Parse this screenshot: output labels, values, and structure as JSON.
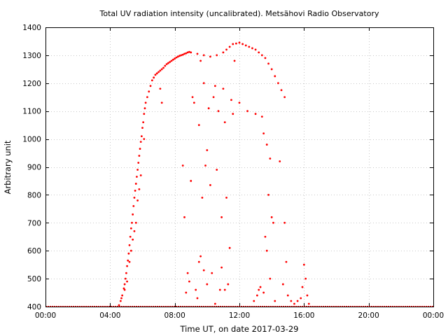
{
  "chart_data": {
    "type": "scatter",
    "title": "Total UV radiation intensity (uncalibrated). Metsähovi Radio Observatory",
    "xlabel": "Time UT, on date 2017-03-29",
    "ylabel": "Arbitrary unit",
    "xlim": [
      0,
      24
    ],
    "ylim": [
      400,
      1400
    ],
    "x_ticks": [
      0,
      4,
      8,
      12,
      16,
      20,
      24
    ],
    "x_tick_labels": [
      "00:00",
      "04:00",
      "08:00",
      "12:00",
      "16:00",
      "20:00",
      "00:00"
    ],
    "y_ticks": [
      400,
      500,
      600,
      700,
      800,
      900,
      1000,
      1100,
      1200,
      1300,
      1400
    ],
    "y_tick_labels": [
      "400",
      "500",
      "600",
      "700",
      "800",
      "900",
      "1000",
      "1100",
      "1200",
      "1300",
      "1400"
    ],
    "grid": true,
    "marker_color": "#ff0000",
    "baseline": {
      "value": 400,
      "x_range": [
        0,
        24
      ]
    },
    "series": [
      {
        "points": [
          [
            4.55,
            405
          ],
          [
            4.65,
            420
          ],
          [
            4.75,
            440
          ],
          [
            4.85,
            465
          ],
          [
            4.9,
            480
          ],
          [
            4.95,
            500
          ],
          [
            5.0,
            520
          ],
          [
            5.05,
            545
          ],
          [
            5.1,
            565
          ],
          [
            5.15,
            590
          ],
          [
            5.2,
            620
          ],
          [
            5.25,
            650
          ],
          [
            5.3,
            680
          ],
          [
            5.35,
            700
          ],
          [
            5.4,
            730
          ],
          [
            5.45,
            760
          ],
          [
            5.5,
            790
          ],
          [
            5.55,
            815
          ],
          [
            5.6,
            840
          ],
          [
            5.65,
            865
          ],
          [
            5.7,
            890
          ],
          [
            5.75,
            915
          ],
          [
            5.8,
            940
          ],
          [
            5.85,
            965
          ],
          [
            5.9,
            990
          ],
          [
            5.95,
            1010
          ],
          [
            6.0,
            1040
          ],
          [
            6.05,
            1060
          ],
          [
            6.1,
            1090
          ],
          [
            6.15,
            1110
          ],
          [
            6.2,
            1130
          ],
          [
            6.3,
            1150
          ],
          [
            6.4,
            1170
          ],
          [
            6.5,
            1190
          ],
          [
            6.6,
            1210
          ],
          [
            6.7,
            1220
          ],
          [
            6.8,
            1230
          ],
          [
            6.9,
            1235
          ],
          [
            7.0,
            1240
          ],
          [
            7.1,
            1245
          ],
          [
            7.2,
            1250
          ],
          [
            7.3,
            1255
          ],
          [
            7.4,
            1262
          ],
          [
            7.5,
            1268
          ],
          [
            7.6,
            1272
          ],
          [
            7.7,
            1276
          ],
          [
            7.8,
            1280
          ],
          [
            7.9,
            1284
          ],
          [
            8.0,
            1288
          ],
          [
            8.1,
            1292
          ],
          [
            8.2,
            1295
          ],
          [
            8.3,
            1298
          ],
          [
            8.4,
            1300
          ],
          [
            8.5,
            1302
          ],
          [
            8.6,
            1305
          ],
          [
            8.7,
            1307
          ],
          [
            8.8,
            1310
          ],
          [
            8.9,
            1312
          ],
          [
            9.0,
            1310
          ],
          [
            9.4,
            1305
          ],
          [
            9.8,
            1300
          ],
          [
            10.2,
            1295
          ],
          [
            10.6,
            1300
          ],
          [
            11.0,
            1310
          ],
          [
            11.2,
            1320
          ],
          [
            11.4,
            1330
          ],
          [
            11.6,
            1340
          ],
          [
            11.8,
            1342
          ],
          [
            12.0,
            1345
          ],
          [
            12.2,
            1340
          ],
          [
            12.4,
            1335
          ],
          [
            12.6,
            1330
          ],
          [
            12.8,
            1325
          ],
          [
            13.0,
            1320
          ],
          [
            13.2,
            1310
          ],
          [
            13.4,
            1300
          ],
          [
            13.6,
            1290
          ],
          [
            13.8,
            1270
          ],
          [
            14.0,
            1250
          ],
          [
            14.2,
            1225
          ],
          [
            14.4,
            1200
          ],
          [
            14.6,
            1175
          ],
          [
            14.8,
            1150
          ],
          [
            4.7,
            430
          ],
          [
            4.9,
            460
          ],
          [
            5.05,
            490
          ],
          [
            5.2,
            560
          ],
          [
            5.3,
            600
          ],
          [
            5.4,
            640
          ],
          [
            5.5,
            670
          ],
          [
            5.6,
            700
          ],
          [
            5.7,
            780
          ],
          [
            5.8,
            820
          ],
          [
            5.9,
            870
          ],
          [
            6.1,
            1000
          ],
          [
            7.1,
            1180
          ],
          [
            7.2,
            1130
          ],
          [
            8.5,
            905
          ],
          [
            8.6,
            720
          ],
          [
            8.7,
            450
          ],
          [
            8.8,
            520
          ],
          [
            8.9,
            490
          ],
          [
            9.0,
            850
          ],
          [
            9.1,
            1150
          ],
          [
            9.2,
            1130
          ],
          [
            9.3,
            460
          ],
          [
            9.4,
            430
          ],
          [
            9.5,
            1050
          ],
          [
            9.6,
            1280
          ],
          [
            9.7,
            790
          ],
          [
            9.8,
            1200
          ],
          [
            9.9,
            905
          ],
          [
            10.0,
            960
          ],
          [
            10.1,
            1110
          ],
          [
            10.2,
            835
          ],
          [
            10.3,
            520
          ],
          [
            10.4,
            1150
          ],
          [
            10.5,
            1190
          ],
          [
            10.6,
            890
          ],
          [
            10.7,
            1100
          ],
          [
            10.8,
            460
          ],
          [
            10.9,
            720
          ],
          [
            11.0,
            1180
          ],
          [
            11.1,
            1060
          ],
          [
            11.2,
            790
          ],
          [
            11.3,
            480
          ],
          [
            11.4,
            610
          ],
          [
            11.5,
            1140
          ],
          [
            11.6,
            1090
          ],
          [
            11.7,
            1280
          ],
          [
            12.0,
            1130
          ],
          [
            12.5,
            1100
          ],
          [
            13.0,
            1090
          ],
          [
            13.2,
            460
          ],
          [
            13.4,
            1080
          ],
          [
            13.5,
            1020
          ],
          [
            13.6,
            650
          ],
          [
            13.7,
            980
          ],
          [
            13.8,
            800
          ],
          [
            13.9,
            930
          ],
          [
            14.0,
            720
          ],
          [
            14.1,
            700
          ],
          [
            14.5,
            920
          ],
          [
            14.7,
            480
          ],
          [
            14.8,
            700
          ],
          [
            14.9,
            560
          ],
          [
            15.0,
            440
          ],
          [
            15.2,
            420
          ],
          [
            15.4,
            410
          ],
          [
            15.6,
            420
          ],
          [
            15.8,
            430
          ],
          [
            15.9,
            470
          ],
          [
            16.0,
            550
          ],
          [
            16.1,
            500
          ],
          [
            16.2,
            440
          ],
          [
            16.3,
            410
          ],
          [
            9.5,
            560
          ],
          [
            9.6,
            580
          ],
          [
            9.8,
            530
          ],
          [
            10.0,
            480
          ],
          [
            10.5,
            410
          ],
          [
            10.9,
            540
          ],
          [
            11.1,
            460
          ],
          [
            12.9,
            420
          ],
          [
            13.1,
            440
          ],
          [
            13.3,
            470
          ],
          [
            13.5,
            450
          ],
          [
            13.7,
            600
          ],
          [
            13.9,
            500
          ],
          [
            14.2,
            420
          ]
        ]
      }
    ]
  }
}
